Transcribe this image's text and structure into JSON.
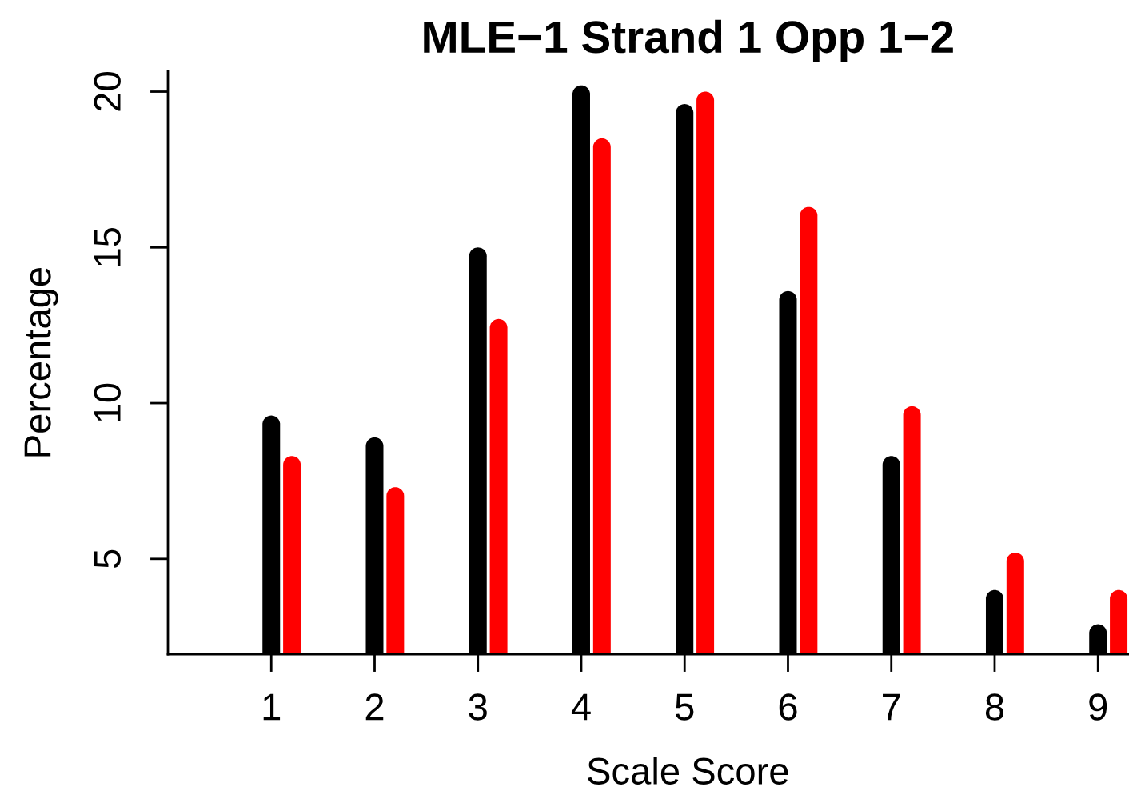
{
  "chart_data": {
    "type": "bar",
    "title": "MLE−1 Strand 1 Opp 1−2",
    "xlabel": "Scale Score",
    "ylabel": "Percentage",
    "series": [
      {
        "color": "#000000",
        "x": [
          1,
          2,
          3,
          4,
          5,
          6,
          7,
          8,
          9
        ],
        "values": [
          9.6,
          8.9,
          15.0,
          20.2,
          19.6,
          13.6,
          8.3,
          4.0,
          2.9
        ]
      },
      {
        "color": "#ff0000",
        "x": [
          1.2,
          2.2,
          3.2,
          4.2,
          5.2,
          6.2,
          7.2,
          8.2,
          9.2
        ],
        "values": [
          8.3,
          7.3,
          12.7,
          18.5,
          20.0,
          16.3,
          9.9,
          5.2,
          4.0
        ]
      }
    ],
    "xlim": [
      0,
      9.3
    ],
    "ylim": [
      1.94,
      20.65
    ],
    "xticks": [
      1,
      2,
      3,
      4,
      5,
      6,
      7,
      8,
      9
    ],
    "yticks": [
      5,
      10,
      15,
      20
    ]
  }
}
